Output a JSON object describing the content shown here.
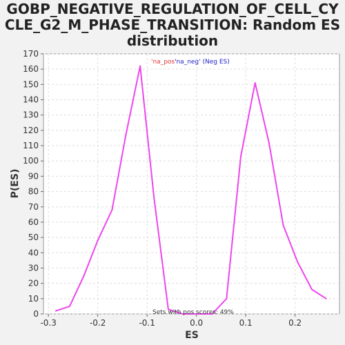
{
  "chart_data": {
    "type": "line",
    "title_lines": [
      "GOBP_NEGATIVE_REGULATION_OF_CELL_CY",
      "CLE_G2_M_PHASE_TRANSITION: Random ES",
      "distribution"
    ],
    "xlabel": "ES",
    "ylabel": "P(ES)",
    "xlim": [
      -0.31,
      0.29
    ],
    "ylim": [
      0,
      170
    ],
    "xticks": [
      -0.3,
      -0.2,
      -0.1,
      0.0,
      0.1,
      0.2
    ],
    "xtick_labels": [
      "-0.3",
      "-0.2",
      "-0.1",
      "0.0",
      "0.1",
      "0.2"
    ],
    "yticks": [
      0,
      10,
      20,
      30,
      40,
      50,
      60,
      70,
      80,
      90,
      100,
      110,
      120,
      130,
      140,
      150,
      160,
      170
    ],
    "grid": true,
    "legend_pos_text": "'na_pos'",
    "legend_neg_text": "'na_neg' (Neg ES)",
    "annotation": "Sets with pos scores: 49%",
    "colors": {
      "line": "#ee44ee",
      "legend_pos": "#e03030",
      "legend_neg": "#2222cc",
      "grid": "#dddddd",
      "plot_bg": "#ffffff",
      "page_bg": "#f2f2f2"
    },
    "series": [
      {
        "x": [
          -0.285,
          -0.257,
          -0.228,
          -0.2,
          -0.171,
          -0.143,
          -0.114,
          -0.086,
          -0.057,
          -0.028,
          0.0,
          0.032,
          0.061,
          0.09,
          0.119,
          0.147,
          0.176,
          0.205,
          0.234,
          0.263
        ],
        "y": [
          2,
          5,
          25,
          48,
          68,
          117,
          162,
          76,
          3,
          0,
          0,
          0,
          10,
          103,
          151,
          112,
          58,
          34,
          16,
          10
        ]
      }
    ]
  }
}
